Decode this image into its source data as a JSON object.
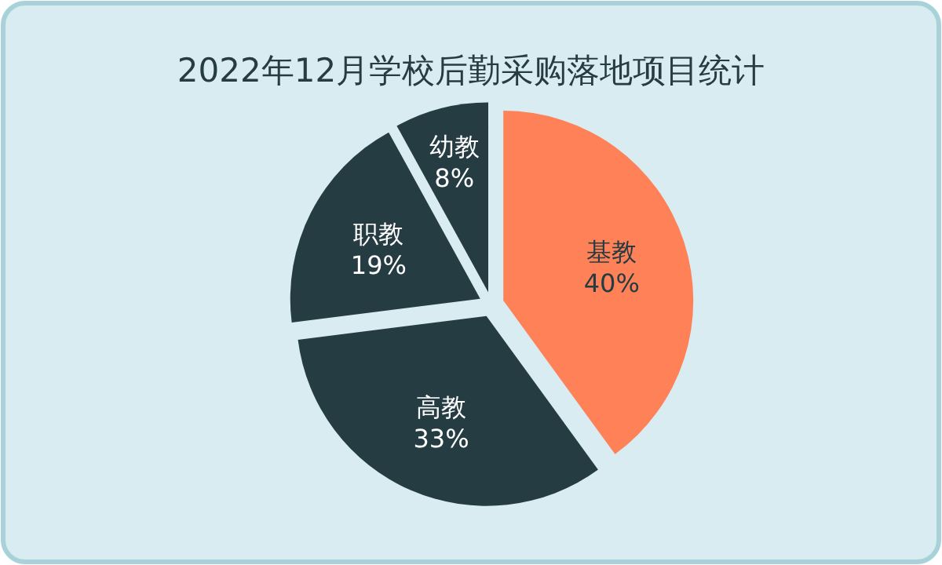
{
  "chart_data": {
    "type": "pie",
    "title": "2022年12月学校后勤采购落地项目统计",
    "categories": [
      "基教",
      "高教",
      "职教",
      "幼教"
    ],
    "values": [
      40,
      33,
      19,
      8
    ],
    "value_labels": [
      "40%",
      "33%",
      "19%",
      "8%"
    ],
    "colors": [
      "#ff8157",
      "#263c43",
      "#263c43",
      "#263c43"
    ]
  }
}
